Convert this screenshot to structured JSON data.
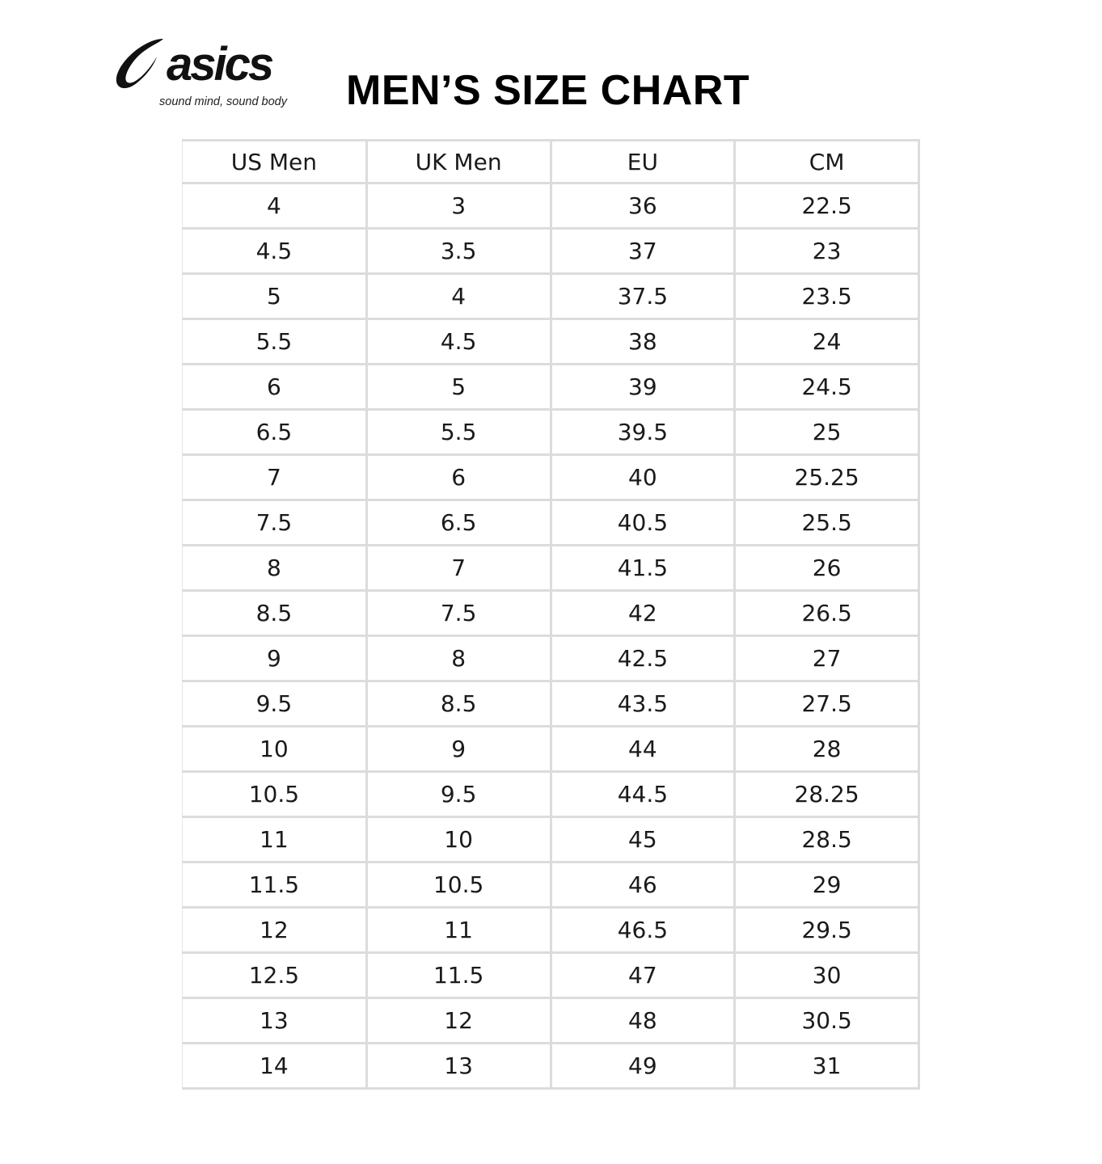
{
  "logo": {
    "wordmark": "asics",
    "tagline": "sound mind, sound body"
  },
  "title": "MEN’S SIZE CHART",
  "table": {
    "headers": [
      "US Men",
      "UK Men",
      "EU",
      "CM"
    ],
    "rows": [
      [
        "4",
        "3",
        "36",
        "22.5"
      ],
      [
        "4.5",
        "3.5",
        "37",
        "23"
      ],
      [
        "5",
        "4",
        "37.5",
        "23.5"
      ],
      [
        "5.5",
        "4.5",
        "38",
        "24"
      ],
      [
        "6",
        "5",
        "39",
        "24.5"
      ],
      [
        "6.5",
        "5.5",
        "39.5",
        "25"
      ],
      [
        "7",
        "6",
        "40",
        "25.25"
      ],
      [
        "7.5",
        "6.5",
        "40.5",
        "25.5"
      ],
      [
        "8",
        "7",
        "41.5",
        "26"
      ],
      [
        "8.5",
        "7.5",
        "42",
        "26.5"
      ],
      [
        "9",
        "8",
        "42.5",
        "27"
      ],
      [
        "9.5",
        "8.5",
        "43.5",
        "27.5"
      ],
      [
        "10",
        "9",
        "44",
        "28"
      ],
      [
        "10.5",
        "9.5",
        "44.5",
        "28.25"
      ],
      [
        "11",
        "10",
        "45",
        "28.5"
      ],
      [
        "11.5",
        "10.5",
        "46",
        "29"
      ],
      [
        "12",
        "11",
        "46.5",
        "29.5"
      ],
      [
        "12.5",
        "11.5",
        "47",
        "30"
      ],
      [
        "13",
        "12",
        "48",
        "30.5"
      ],
      [
        "14",
        "13",
        "49",
        "31"
      ]
    ]
  }
}
